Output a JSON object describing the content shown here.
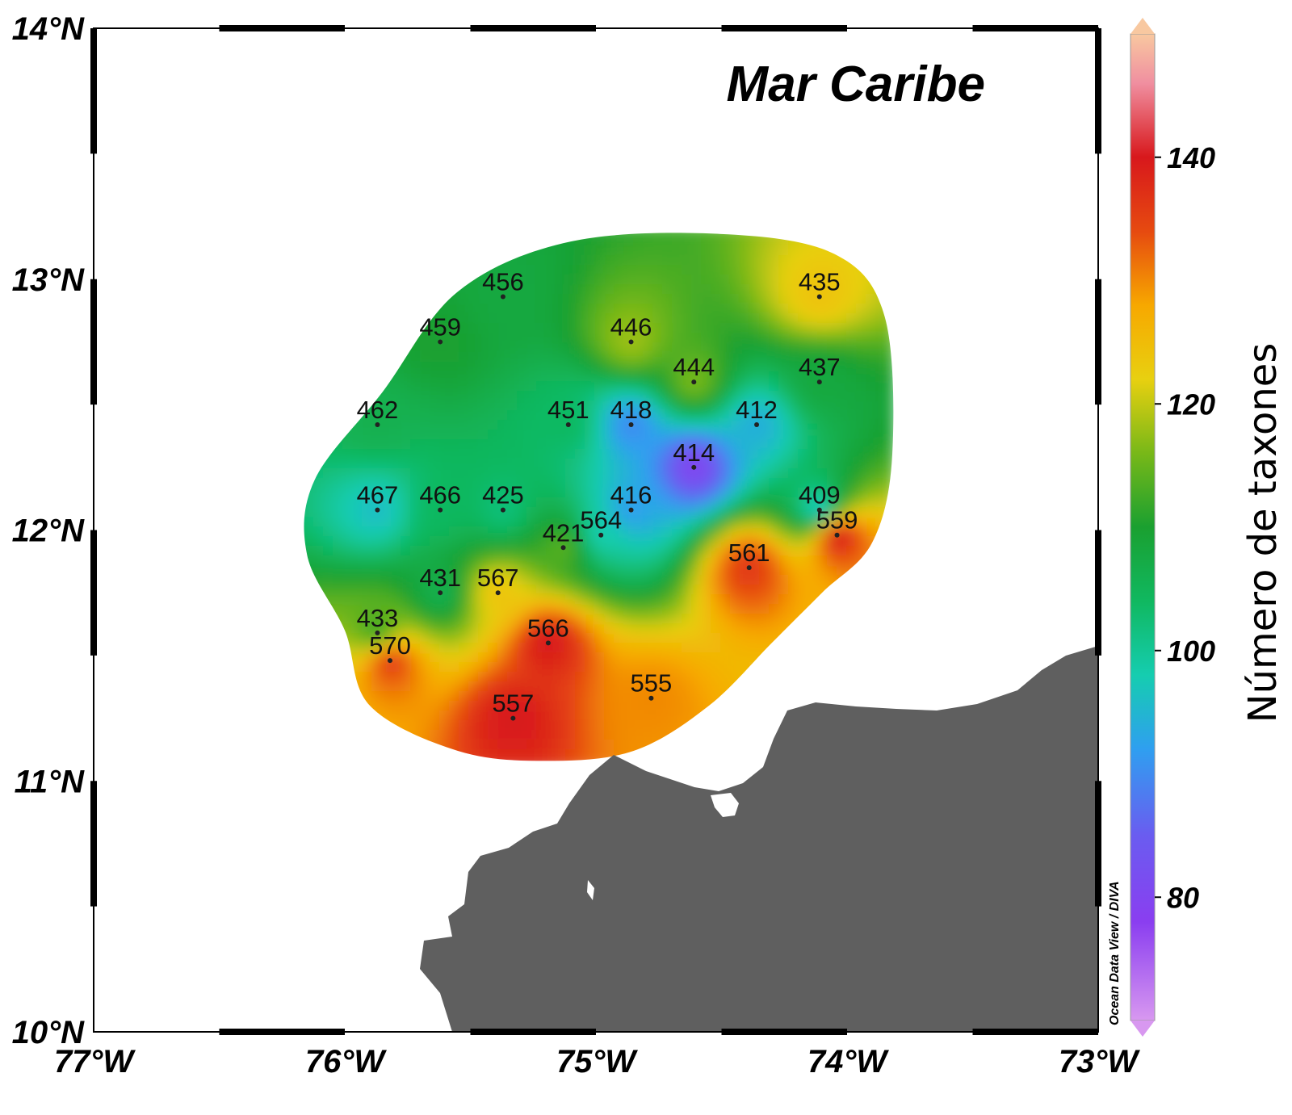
{
  "map": {
    "title": "Mar Caribe",
    "credit": "Ocean Data View / DIVA",
    "lon_range": [
      -77,
      -73
    ],
    "lat_range": [
      10,
      14
    ],
    "x_ticks": [
      {
        "value": -77,
        "label": "77°W"
      },
      {
        "value": -76,
        "label": "76°W"
      },
      {
        "value": -75,
        "label": "75°W"
      },
      {
        "value": -74,
        "label": "74°W"
      },
      {
        "value": -73,
        "label": "73°W"
      }
    ],
    "y_ticks": [
      {
        "value": 14,
        "label": "14°N"
      },
      {
        "value": 13,
        "label": "13°N"
      },
      {
        "value": 12,
        "label": "12°N"
      },
      {
        "value": 11,
        "label": "11°N"
      },
      {
        "value": 10,
        "label": "10°N"
      }
    ],
    "colors": {
      "land": "#5f5f5f",
      "frame": "#000000",
      "ocean": "#ffffff"
    }
  },
  "colorbar": {
    "title": "Número de taxones",
    "range": [
      70,
      150
    ],
    "ticks": [
      {
        "value": 80,
        "label": "80"
      },
      {
        "value": 100,
        "label": "100"
      },
      {
        "value": 120,
        "label": "120"
      },
      {
        "value": 140,
        "label": "140"
      }
    ],
    "stops": [
      {
        "value": 70,
        "color": "#d898f0"
      },
      {
        "value": 78,
        "color": "#8a3ef0"
      },
      {
        "value": 85,
        "color": "#6a5cf0"
      },
      {
        "value": 92,
        "color": "#2f9ff0"
      },
      {
        "value": 98,
        "color": "#15cdb0"
      },
      {
        "value": 104,
        "color": "#10b860"
      },
      {
        "value": 110,
        "color": "#1aa030"
      },
      {
        "value": 116,
        "color": "#78b818"
      },
      {
        "value": 122,
        "color": "#e8d010"
      },
      {
        "value": 128,
        "color": "#f7a800"
      },
      {
        "value": 134,
        "color": "#e64a10"
      },
      {
        "value": 140,
        "color": "#d8181c"
      },
      {
        "value": 146,
        "color": "#f08fa0"
      },
      {
        "value": 150,
        "color": "#f8c8a0"
      }
    ]
  },
  "chart_data": {
    "type": "heatmap",
    "variable": "Número de taxones",
    "stations": [
      {
        "id": "456",
        "lon": -75.37,
        "lat": 12.93,
        "value": 108
      },
      {
        "id": "459",
        "lon": -75.62,
        "lat": 12.75,
        "value": 110
      },
      {
        "id": "446",
        "lon": -74.86,
        "lat": 12.75,
        "value": 118
      },
      {
        "id": "435",
        "lon": -74.11,
        "lat": 12.93,
        "value": 124
      },
      {
        "id": "444",
        "lon": -74.61,
        "lat": 12.59,
        "value": 116
      },
      {
        "id": "437",
        "lon": -74.11,
        "lat": 12.59,
        "value": 108
      },
      {
        "id": "462",
        "lon": -75.87,
        "lat": 12.42,
        "value": 106
      },
      {
        "id": "451",
        "lon": -75.11,
        "lat": 12.42,
        "value": 104
      },
      {
        "id": "418",
        "lon": -74.86,
        "lat": 12.42,
        "value": 90
      },
      {
        "id": "412",
        "lon": -74.36,
        "lat": 12.42,
        "value": 94
      },
      {
        "id": "414",
        "lon": -74.61,
        "lat": 12.25,
        "value": 80
      },
      {
        "id": "467",
        "lon": -75.87,
        "lat": 12.08,
        "value": 96
      },
      {
        "id": "466",
        "lon": -75.62,
        "lat": 12.08,
        "value": 104
      },
      {
        "id": "425",
        "lon": -75.37,
        "lat": 12.08,
        "value": 102
      },
      {
        "id": "416",
        "lon": -74.86,
        "lat": 12.08,
        "value": 92
      },
      {
        "id": "409",
        "lon": -74.11,
        "lat": 12.08,
        "value": 96
      },
      {
        "id": "564",
        "lon": -74.98,
        "lat": 11.98,
        "value": 98
      },
      {
        "id": "559",
        "lon": -74.04,
        "lat": 11.98,
        "value": 140
      },
      {
        "id": "421",
        "lon": -75.13,
        "lat": 11.93,
        "value": 114
      },
      {
        "id": "561",
        "lon": -74.39,
        "lat": 11.85,
        "value": 136
      },
      {
        "id": "431",
        "lon": -75.62,
        "lat": 11.75,
        "value": 106
      },
      {
        "id": "567",
        "lon": -75.39,
        "lat": 11.75,
        "value": 124
      },
      {
        "id": "433",
        "lon": -75.87,
        "lat": 11.59,
        "value": 112
      },
      {
        "id": "566",
        "lon": -75.19,
        "lat": 11.55,
        "value": 140
      },
      {
        "id": "570",
        "lon": -75.82,
        "lat": 11.48,
        "value": 136
      },
      {
        "id": "555",
        "lon": -74.78,
        "lat": 11.33,
        "value": 130
      },
      {
        "id": "557",
        "lon": -75.33,
        "lat": 11.25,
        "value": 140
      }
    ]
  }
}
